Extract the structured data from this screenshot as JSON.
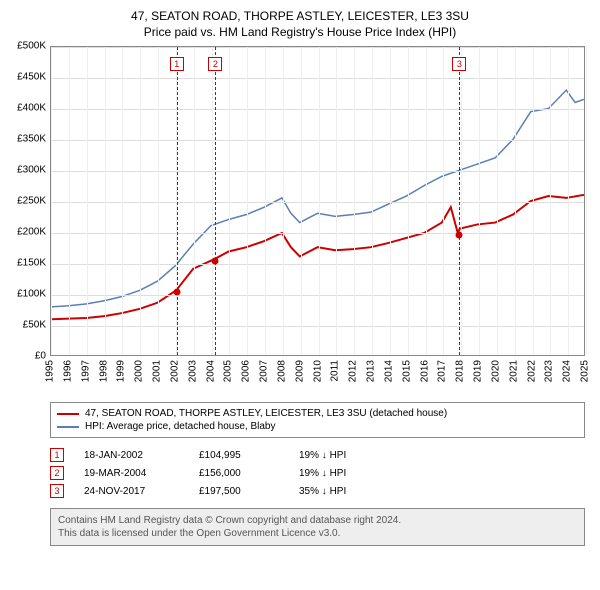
{
  "title_line1": "47, SEATON ROAD, THORPE ASTLEY, LEICESTER, LE3 3SU",
  "title_line2": "Price paid vs. HM Land Registry's House Price Index (HPI)",
  "chart": {
    "type": "line",
    "background_color": "#ffffff",
    "grid_color": "#dddddd",
    "grid_color_v": "#eeeeee",
    "border_color": "#888888",
    "ylim": [
      0,
      500000
    ],
    "ytick_step": 50000,
    "xlim": [
      1995,
      2025
    ],
    "yticks": [
      "£0",
      "£50K",
      "£100K",
      "£150K",
      "£200K",
      "£250K",
      "£300K",
      "£350K",
      "£400K",
      "£450K",
      "£500K"
    ],
    "xticks": [
      "1995",
      "1996",
      "1997",
      "1998",
      "1999",
      "2000",
      "2001",
      "2002",
      "2003",
      "2004",
      "2005",
      "2006",
      "2007",
      "2008",
      "2009",
      "2010",
      "2011",
      "2012",
      "2013",
      "2014",
      "2015",
      "2016",
      "2017",
      "2018",
      "2019",
      "2020",
      "2021",
      "2022",
      "2023",
      "2024",
      "2025"
    ],
    "series_local": {
      "label": "47, SEATON ROAD, THORPE ASTLEY, LEICESTER, LE3 3SU (detached house)",
      "color": "#cc0000",
      "line_width": 2,
      "points": [
        [
          1995,
          58000
        ],
        [
          1996,
          59000
        ],
        [
          1997,
          60000
        ],
        [
          1998,
          63000
        ],
        [
          1999,
          68000
        ],
        [
          2000,
          75000
        ],
        [
          2001,
          85000
        ],
        [
          2002.05,
          104995
        ],
        [
          2003,
          140000
        ],
        [
          2004.22,
          156000
        ],
        [
          2005,
          168000
        ],
        [
          2006,
          175000
        ],
        [
          2007,
          185000
        ],
        [
          2008,
          198000
        ],
        [
          2008.5,
          175000
        ],
        [
          2009,
          160000
        ],
        [
          2010,
          175000
        ],
        [
          2011,
          170000
        ],
        [
          2012,
          172000
        ],
        [
          2013,
          175000
        ],
        [
          2014,
          182000
        ],
        [
          2015,
          190000
        ],
        [
          2016,
          198000
        ],
        [
          2017,
          215000
        ],
        [
          2017.5,
          240000
        ],
        [
          2017.9,
          197500
        ],
        [
          2018,
          205000
        ],
        [
          2019,
          212000
        ],
        [
          2020,
          215000
        ],
        [
          2021,
          228000
        ],
        [
          2022,
          250000
        ],
        [
          2023,
          258000
        ],
        [
          2024,
          255000
        ],
        [
          2025,
          260000
        ]
      ]
    },
    "series_hpi": {
      "label": "HPI: Average price, detached house, Blaby",
      "color": "#5b7fb5",
      "line_width": 1.5,
      "points": [
        [
          1995,
          78000
        ],
        [
          1996,
          80000
        ],
        [
          1997,
          83000
        ],
        [
          1998,
          88000
        ],
        [
          1999,
          95000
        ],
        [
          2000,
          105000
        ],
        [
          2001,
          120000
        ],
        [
          2002,
          145000
        ],
        [
          2003,
          180000
        ],
        [
          2004,
          210000
        ],
        [
          2005,
          220000
        ],
        [
          2006,
          228000
        ],
        [
          2007,
          240000
        ],
        [
          2008,
          255000
        ],
        [
          2008.5,
          230000
        ],
        [
          2009,
          215000
        ],
        [
          2010,
          230000
        ],
        [
          2011,
          225000
        ],
        [
          2012,
          228000
        ],
        [
          2013,
          232000
        ],
        [
          2014,
          245000
        ],
        [
          2015,
          258000
        ],
        [
          2016,
          275000
        ],
        [
          2017,
          290000
        ],
        [
          2018,
          300000
        ],
        [
          2019,
          310000
        ],
        [
          2020,
          320000
        ],
        [
          2021,
          350000
        ],
        [
          2022,
          395000
        ],
        [
          2023,
          400000
        ],
        [
          2024,
          430000
        ],
        [
          2024.5,
          410000
        ],
        [
          2025,
          415000
        ]
      ]
    },
    "sale_markers": [
      {
        "n": "1",
        "year": 2002.05,
        "price": 104995,
        "badge_top": 10
      },
      {
        "n": "2",
        "year": 2004.22,
        "price": 156000,
        "badge_top": 10
      },
      {
        "n": "3",
        "year": 2017.9,
        "price": 197500,
        "badge_top": 10
      }
    ],
    "label_fontsize": 10,
    "title_fontsize": 12
  },
  "legend": {
    "rows": [
      {
        "color": "#cc0000",
        "text": "47, SEATON ROAD, THORPE ASTLEY, LEICESTER, LE3 3SU (detached house)"
      },
      {
        "color": "#5b7fb5",
        "text": "HPI: Average price, detached house, Blaby"
      }
    ]
  },
  "sales": [
    {
      "n": "1",
      "date": "18-JAN-2002",
      "price": "£104,995",
      "diff": "19% ↓ HPI"
    },
    {
      "n": "2",
      "date": "19-MAR-2004",
      "price": "£156,000",
      "diff": "19% ↓ HPI"
    },
    {
      "n": "3",
      "date": "24-NOV-2017",
      "price": "£197,500",
      "diff": "35% ↓ HPI"
    }
  ],
  "footer": {
    "line1": "Contains HM Land Registry data © Crown copyright and database right 2024.",
    "line2": "This data is licensed under the Open Government Licence v3.0."
  }
}
